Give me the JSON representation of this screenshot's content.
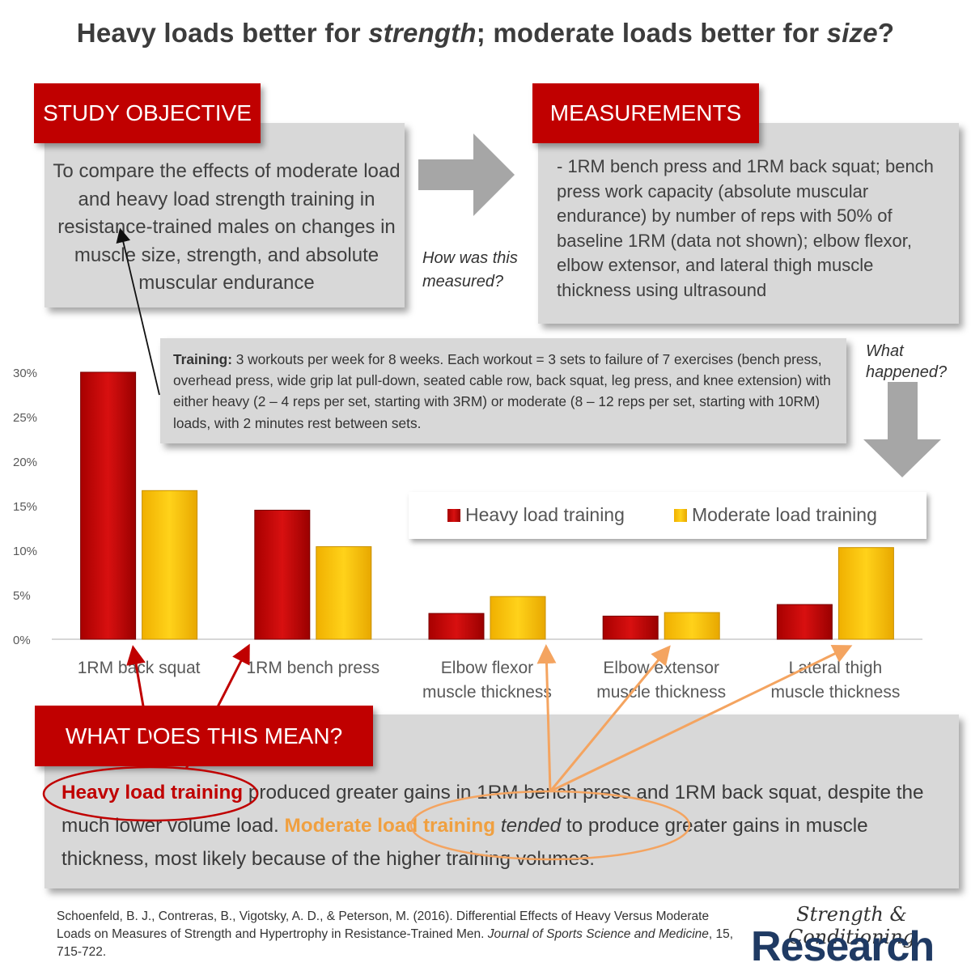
{
  "title": {
    "pre": "Heavy loads better for ",
    "em1": "strength",
    "mid": "; moderate loads better for ",
    "em2": "size",
    "post": "?"
  },
  "objective": {
    "tab": "STUDY OBJECTIVE",
    "text": "To compare the effects of moderate load and heavy load strength training in resistance-trained males on changes in muscle size, strength, and absolute muscular endurance"
  },
  "measurements": {
    "tab": "MEASUREMENTS",
    "text": "- 1RM bench press and 1RM back squat; bench press work capacity (absolute muscular endurance) by number of reps with 50% of baseline 1RM (data not shown); elbow flexor, elbow extensor, and lateral thigh muscle thickness using ultrasound"
  },
  "questions": {
    "how": "How was this measured?",
    "what": "What happened?"
  },
  "training": {
    "label": "Training:",
    "text": " 3 workouts per week for 8 weeks. Each workout = 3 sets to failure of 7 exercises (bench press, overhead press, wide grip lat pull-down, seated cable row, back squat, leg press, and knee extension) with either heavy (2 – 4 reps per set, starting with 3RM) or moderate (8 – 12 reps per set, starting with 10RM) loads, with 2 minutes rest between sets."
  },
  "meaning": {
    "tab": "WHAT DOES THIS MEAN?",
    "heavy": "Heavy load training",
    "p1": " produced greater gains in 1RM bench press and 1RM back squat, despite the much lower volume load. ",
    "moderate": "Moderate load training",
    "sp": " ",
    "tended": "tended",
    "p2": " to produce greater gains in muscle thickness, most likely because of the higher training volumes."
  },
  "citation": {
    "authors": "Schoenfeld, B. J., Contreras, B., Vigotsky, A. D., & Peterson, M. (2016). Differential Effects of Heavy Versus Moderate Loads on Measures of Strength and Hypertrophy in Resistance-Trained Men. ",
    "journal": "Journal of Sports Science and Medicine",
    "rest": ", 15, 715-722."
  },
  "brand": {
    "line1": "Strength & Conditioning",
    "line2": "Research"
  },
  "colors": {
    "heavy": "#c00000",
    "moderate": "#ffc000",
    "heavy_arrow": "#c00000",
    "moderate_arrow": "#f4a460"
  },
  "chart_data": {
    "type": "bar",
    "categories": [
      [
        "1RM back squat"
      ],
      [
        "1RM bench press"
      ],
      [
        "Elbow flexor",
        "muscle thickness"
      ],
      [
        "Elbow extensor",
        "muscle thickness"
      ],
      [
        "Lateral thigh",
        "muscle thickness"
      ]
    ],
    "series": [
      {
        "name": "Heavy load training",
        "values": [
          30.0,
          14.5,
          2.9,
          2.6,
          3.9
        ]
      },
      {
        "name": "Moderate load training",
        "values": [
          16.7,
          10.4,
          4.8,
          3.0,
          10.3
        ]
      }
    ],
    "yticks": [
      "0%",
      "5%",
      "10%",
      "15%",
      "20%",
      "25%",
      "30%"
    ],
    "ylim": [
      0,
      30
    ],
    "title": "",
    "xlabel": "",
    "ylabel": ""
  }
}
